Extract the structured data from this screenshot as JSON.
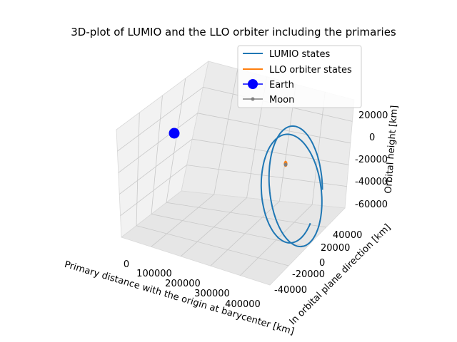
{
  "chart_data": {
    "type": "line3d",
    "title": "3D-plot of LUMIO and the LLO orbiter including the primaries",
    "xlabel": "Primary distance with the origin at barycenter [km]",
    "ylabel": "In orbital plane direction [km]",
    "zlabel": "Orbital height [km]",
    "xticks": [
      "0",
      "100000",
      "200000",
      "300000",
      "400000"
    ],
    "yticks": [
      "-40000",
      "-20000",
      "0",
      "20000",
      "40000"
    ],
    "zticks": [
      "-60000",
      "-40000",
      "-20000",
      "0",
      "20000"
    ],
    "grid": true,
    "legend_position": "top-right",
    "series": [
      {
        "name": "LUMIO states",
        "color": "#1f77b4",
        "style": "line",
        "description": "halo-like loop around the Moon"
      },
      {
        "name": "LLO orbiter states",
        "color": "#ff7f0e",
        "style": "line",
        "description": "small orbit close to the Moon"
      },
      {
        "name": "Earth",
        "color": "#0000ff",
        "style": "marker",
        "x": -4671,
        "y": 0,
        "z": 0
      },
      {
        "name": "Moon",
        "color": "#808080",
        "style": "marker",
        "x": 379729,
        "y": 0,
        "z": 0
      }
    ]
  }
}
